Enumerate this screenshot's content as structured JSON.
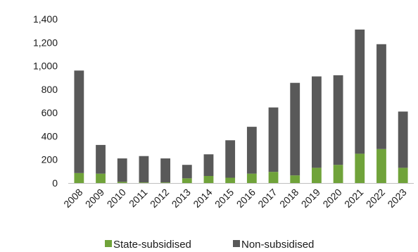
{
  "chart_data": {
    "type": "bar",
    "stacked": true,
    "categories": [
      "2008",
      "2009",
      "2010",
      "2011",
      "2012",
      "2013",
      "2014",
      "2015",
      "2016",
      "2017",
      "2018",
      "2019",
      "2020",
      "2021",
      "2022",
      "2023"
    ],
    "series": [
      {
        "name": "State-subsidised",
        "color": "#70a33a",
        "values": [
          85,
          80,
          10,
          5,
          5,
          40,
          60,
          45,
          80,
          95,
          65,
          130,
          155,
          250,
          290,
          130
        ]
      },
      {
        "name": "Non-subsidised",
        "color": "#595959",
        "values": [
          875,
          245,
          200,
          225,
          205,
          115,
          185,
          320,
          400,
          550,
          790,
          780,
          765,
          1060,
          895,
          480
        ]
      }
    ],
    "title": "",
    "xlabel": "",
    "ylabel": "",
    "ylim": [
      0,
      1400
    ],
    "yticks": [
      "0",
      "200",
      "400",
      "600",
      "800",
      "1,000",
      "1,200",
      "1,400"
    ],
    "grid": false,
    "legend": "bottom-center"
  }
}
